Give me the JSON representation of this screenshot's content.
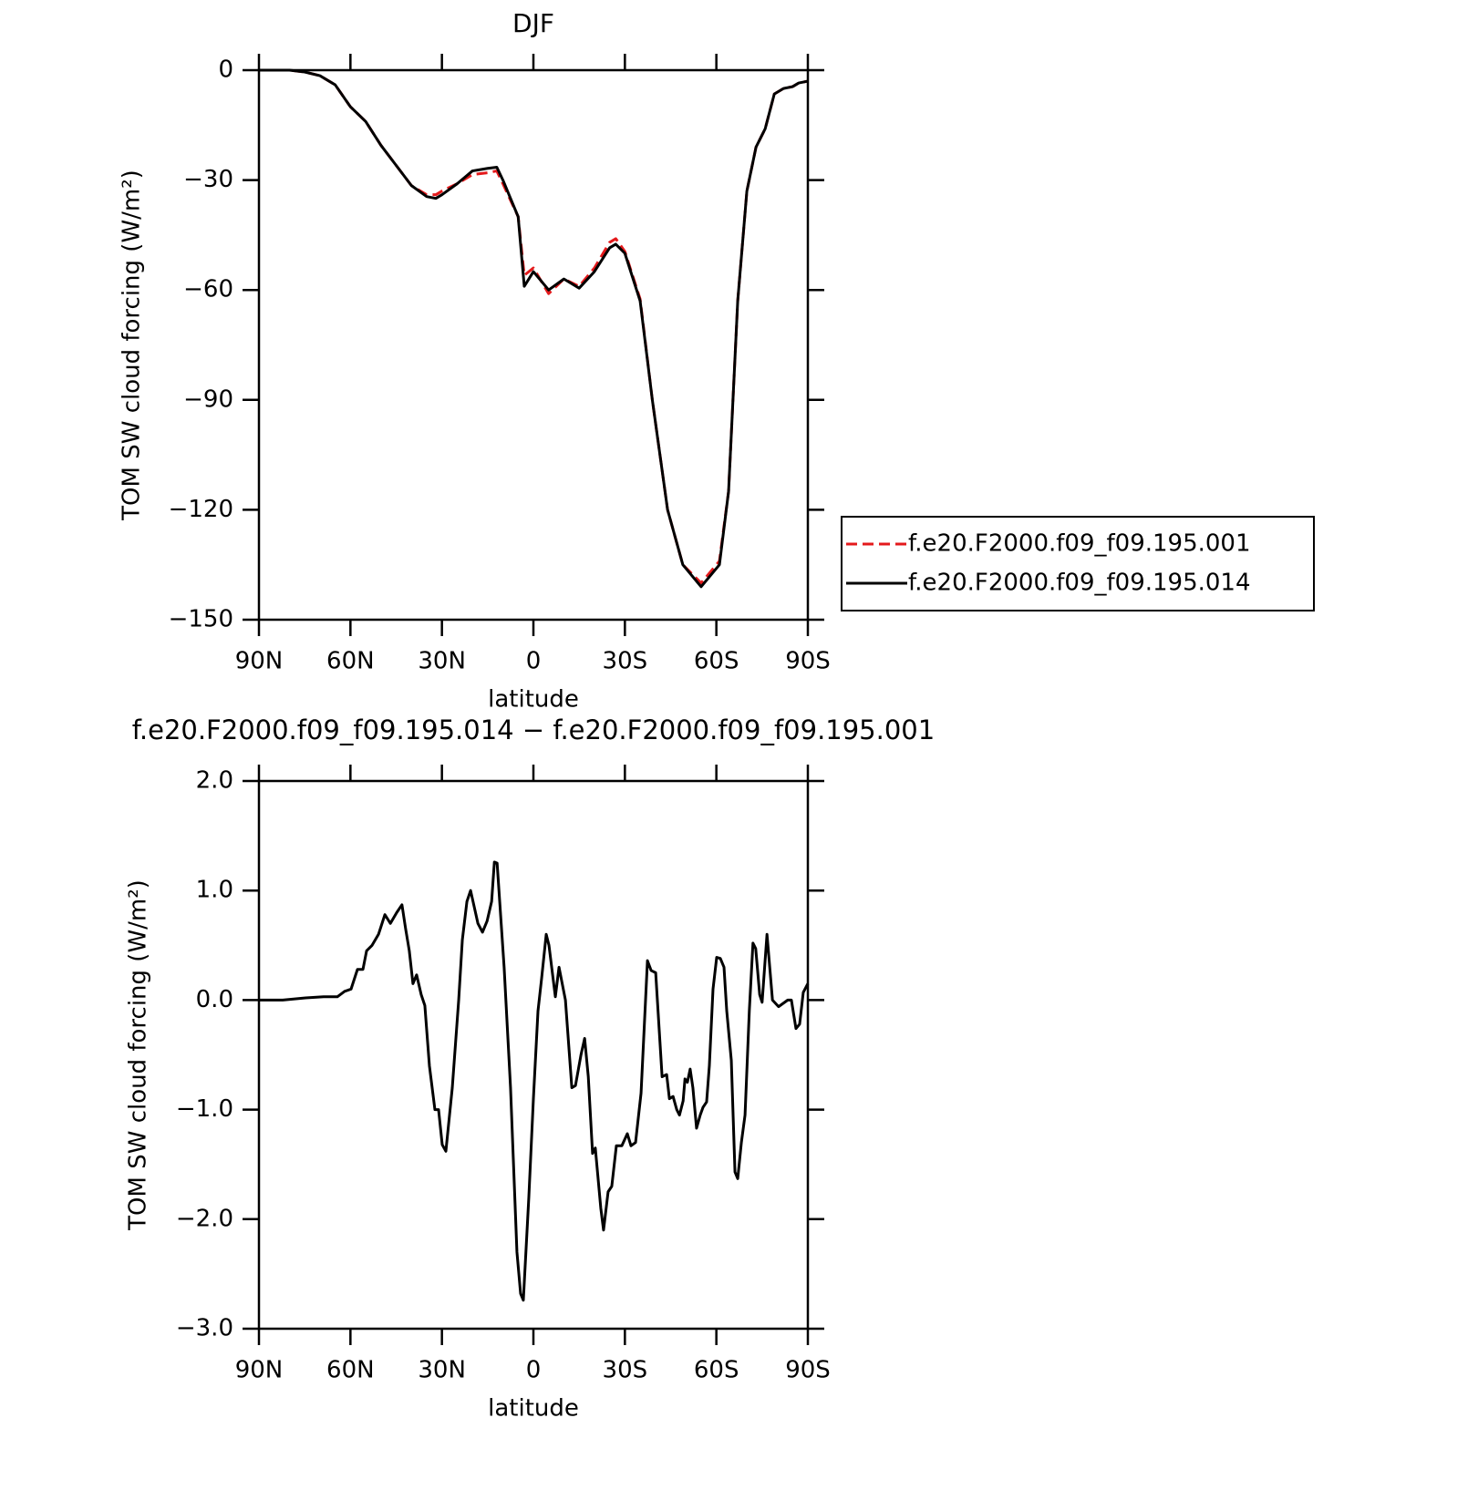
{
  "chart_data": [
    {
      "type": "line",
      "title": "DJF",
      "xlabel": "latitude",
      "ylabel": "TOM SW cloud forcing (W/m²)",
      "x": [
        90,
        80,
        75,
        70,
        65,
        60,
        55,
        50,
        45,
        40,
        35,
        32,
        30,
        25,
        20,
        15,
        12,
        10,
        5,
        3,
        0,
        -5,
        -10,
        -15,
        -20,
        -25,
        -27,
        -30,
        -35,
        -39,
        -44,
        -49,
        -55,
        -61,
        -64,
        -67,
        -70,
        -73,
        -76,
        -79,
        -82,
        -85,
        -87,
        -90
      ],
      "series": [
        {
          "name": "f.e20.F2000.f09_f09.195.001",
          "color": "#e41a1c",
          "style": "dashed",
          "values": [
            0,
            0,
            -0.5,
            -1.5,
            -4,
            -10,
            -14,
            -20.5,
            -26,
            -31.5,
            -34,
            -34,
            -33,
            -31,
            -28.5,
            -28,
            -27.5,
            -31,
            -40,
            -56,
            -54,
            -61,
            -57,
            -59,
            -54,
            -47,
            -46,
            -49.5,
            -62.5,
            -90,
            -120,
            -135,
            -140,
            -134,
            -115,
            -63,
            -33,
            -21,
            -16,
            -6.5,
            -5,
            -4.5,
            -3.5,
            -3
          ]
        },
        {
          "name": "f.e20.F2000.f09_f09.195.014",
          "color": "#000000",
          "style": "solid",
          "values": [
            0,
            0,
            -0.5,
            -1.5,
            -4,
            -10,
            -14,
            -20.5,
            -26,
            -31.5,
            -34.5,
            -35,
            -34,
            -31,
            -27.5,
            -26.8,
            -26.5,
            -30,
            -40,
            -59,
            -55,
            -60,
            -57,
            -59.5,
            -55,
            -48.5,
            -47.5,
            -50,
            -63,
            -90,
            -120,
            -135,
            -141,
            -135,
            -115,
            -63,
            -33,
            -21,
            -16,
            -6.5,
            -5,
            -4.5,
            -3.5,
            -3
          ]
        }
      ],
      "xlim": [
        90,
        -90
      ],
      "xticks": [
        {
          "value": 90,
          "label": "90N"
        },
        {
          "value": 60,
          "label": "60N"
        },
        {
          "value": 30,
          "label": "30N"
        },
        0,
        {
          "value": -30,
          "label": "30S"
        },
        {
          "value": -60,
          "label": "60S"
        },
        {
          "value": -90,
          "label": "90S"
        }
      ],
      "ylim": [
        -150,
        0
      ],
      "yticks": [
        {
          "value": -150,
          "label": "−150"
        },
        {
          "value": -120,
          "label": "−120"
        },
        {
          "value": -90,
          "label": "−90"
        },
        {
          "value": -60,
          "label": "−60"
        },
        {
          "value": -30,
          "label": "−30"
        },
        0
      ],
      "legend": "right"
    },
    {
      "type": "line",
      "title": "f.e20.F2000.f09_f09.195.014 − f.e20.F2000.f09_f09.195.001",
      "xlabel": "latitude",
      "ylabel": "TOM SW cloud forcing (W/m²)",
      "x": [
        90,
        82.2,
        74.7,
        68.8,
        64.3,
        61.9,
        59.8,
        57.7,
        55.9,
        54.7,
        52.9,
        50.8,
        48.7,
        46.9,
        44.8,
        43.1,
        41.9,
        40.7,
        39.5,
        38.3,
        36.8,
        35.6,
        34.1,
        32.3,
        31.1,
        29.9,
        28.7,
        26.6,
        24.5,
        23.3,
        21.8,
        20.6,
        19.4,
        18.2,
        16.7,
        15.2,
        13.7,
        12.8,
        11.9,
        9.6,
        7.5,
        5.4,
        4.2,
        3.3,
        1.5,
        0,
        -1.5,
        -2.7,
        -4.2,
        -5.1,
        -7.2,
        -8.4,
        -10.5,
        -12.6,
        -13.8,
        -15.6,
        -16.8,
        -18,
        -19.4,
        -20.3,
        -22.1,
        -23,
        -24.5,
        -25.7,
        -27.2,
        -29,
        -30.8,
        -32,
        -33.5,
        -35.3,
        -37.4,
        -38.6,
        -40.1,
        -42.2,
        -43.7,
        -44.6,
        -45.8,
        -47,
        -47.9,
        -49.1,
        -49.7,
        -50.5,
        -51.4,
        -52.3,
        -53.5,
        -54.7,
        -55.6,
        -56.8,
        -57.7,
        -58.9,
        -60.1,
        -61.3,
        -62.5,
        -63.4,
        -64.9,
        -66.1,
        -67,
        -68.2,
        -69.4,
        -70.8,
        -72,
        -72.9,
        -74.2,
        -75,
        -76.6,
        -78.4,
        -80.4,
        -83.4,
        -84.6,
        -86.1,
        -87.3,
        -88.5,
        -90
      ],
      "series": [
        {
          "color": "#000000",
          "style": "solid",
          "values": [
            0,
            0,
            0.02,
            0.03,
            0.03,
            0.08,
            0.1,
            0.28,
            0.28,
            0.45,
            0.5,
            0.6,
            0.78,
            0.7,
            0.8,
            0.87,
            0.65,
            0.45,
            0.15,
            0.23,
            0.05,
            -0.05,
            -0.6,
            -1,
            -1,
            -1.32,
            -1.38,
            -0.8,
            0,
            0.55,
            0.9,
            1,
            0.85,
            0.7,
            0.62,
            0.72,
            0.9,
            1.26,
            1.25,
            0.3,
            -0.8,
            -2.3,
            -2.68,
            -2.74,
            -1.8,
            -0.9,
            -0.1,
            0.2,
            0.6,
            0.5,
            0.03,
            0.3,
            0,
            -0.8,
            -0.78,
            -0.5,
            -0.35,
            -0.7,
            -1.4,
            -1.35,
            -1.9,
            -2.1,
            -1.75,
            -1.7,
            -1.33,
            -1.33,
            -1.22,
            -1.33,
            -1.3,
            -0.85,
            0.36,
            0.27,
            0.25,
            -0.7,
            -0.68,
            -0.9,
            -0.88,
            -1,
            -1.05,
            -0.92,
            -0.72,
            -0.75,
            -0.63,
            -0.8,
            -1.17,
            -1.05,
            -0.98,
            -0.93,
            -0.6,
            0.1,
            0.39,
            0.38,
            0.3,
            -0.1,
            -0.55,
            -1.57,
            -1.63,
            -1.3,
            -1.05,
            -0.1,
            0.52,
            0.47,
            0.05,
            -0.02,
            0.6,
            0,
            -0.06,
            0,
            0,
            -0.26,
            -0.22,
            0.07,
            0.15
          ]
        }
      ],
      "xlim": [
        90,
        -90
      ],
      "xticks": [
        {
          "value": 90,
          "label": "90N"
        },
        {
          "value": 60,
          "label": "60N"
        },
        {
          "value": 30,
          "label": "30N"
        },
        0,
        {
          "value": -30,
          "label": "30S"
        },
        {
          "value": -60,
          "label": "60S"
        },
        {
          "value": -90,
          "label": "90S"
        }
      ],
      "ylim": [
        -3,
        2
      ],
      "yticks": [
        {
          "value": -3,
          "label": "−3.0"
        },
        {
          "value": -2,
          "label": "−2.0"
        },
        {
          "value": -1,
          "label": "−1.0"
        },
        {
          "value": 0,
          "label": "0.0"
        },
        {
          "value": 1,
          "label": "1.0"
        },
        {
          "value": 2,
          "label": "2.0"
        }
      ]
    }
  ]
}
